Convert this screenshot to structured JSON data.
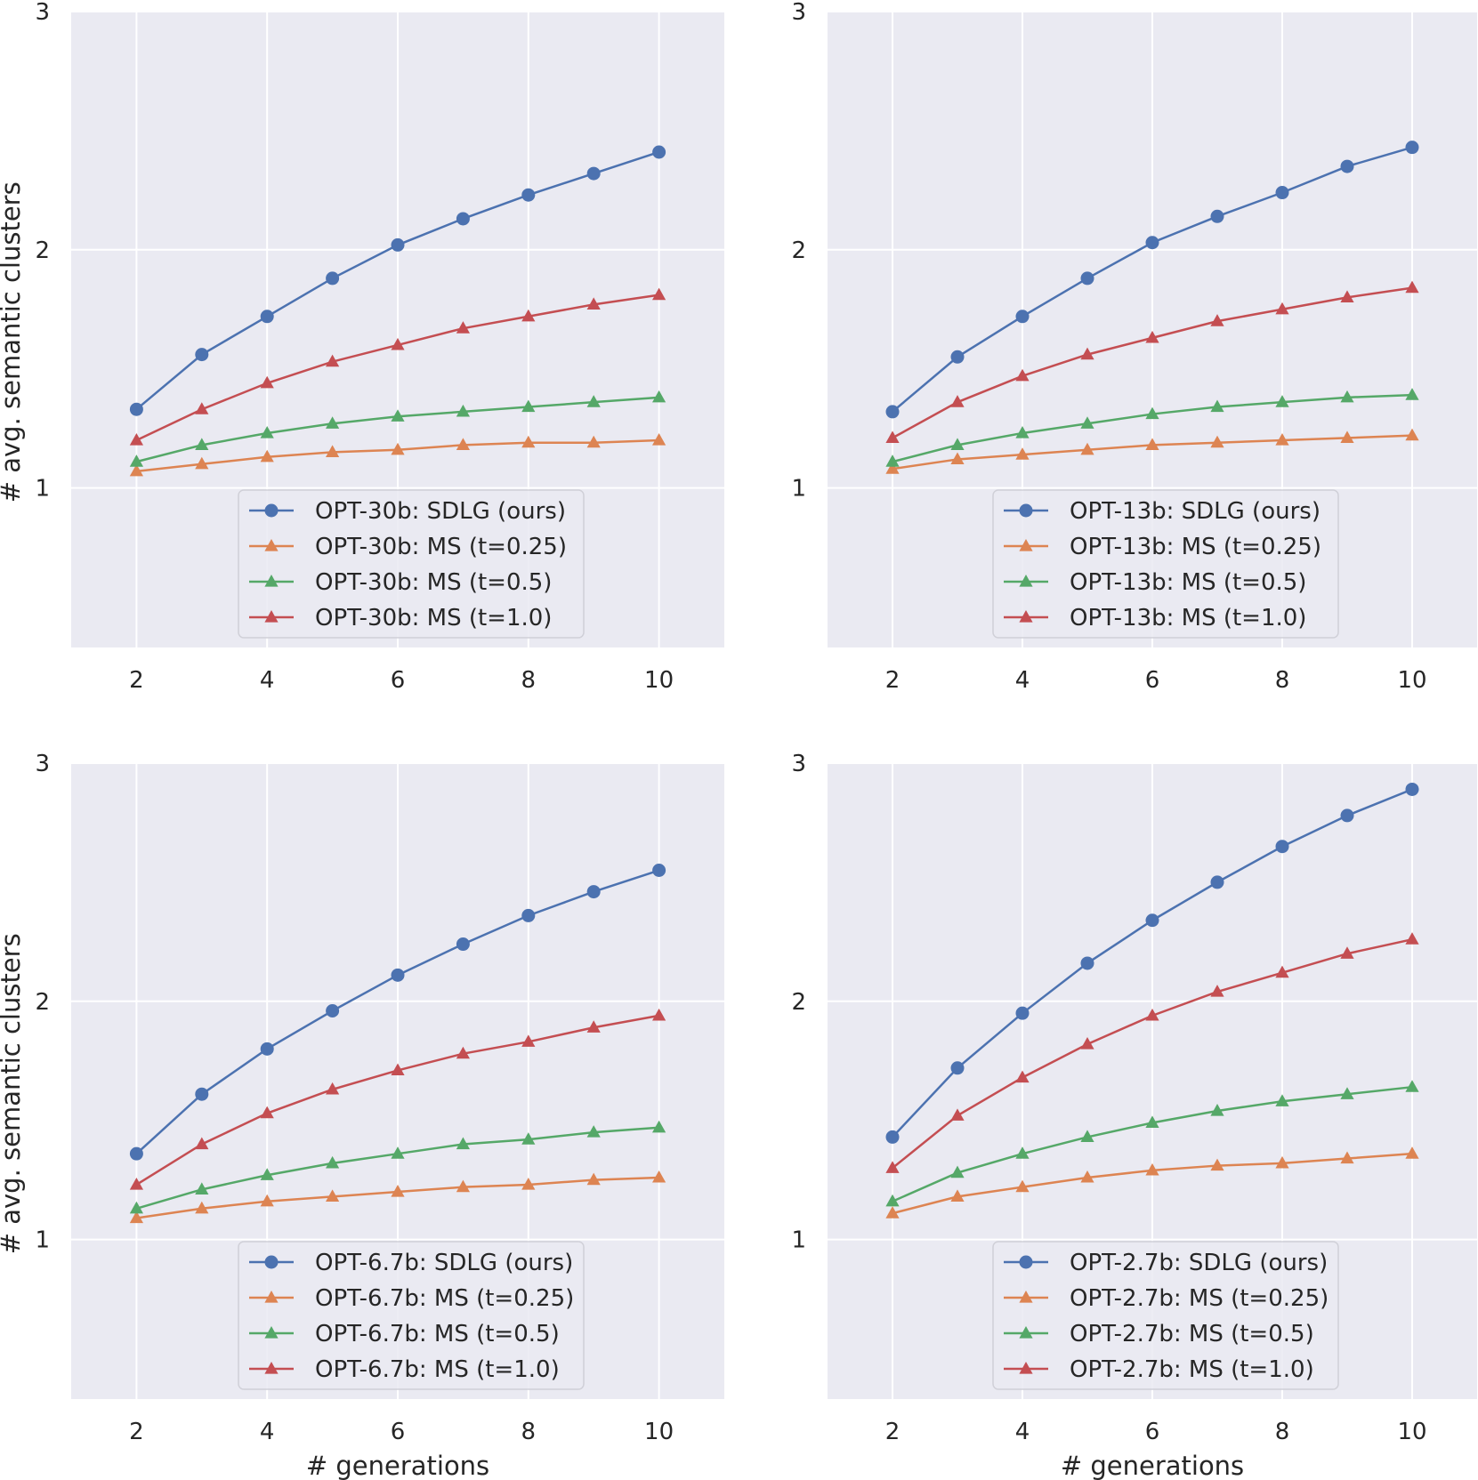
{
  "chart_data": [
    {
      "type": "line",
      "xlabel": "",
      "ylabel": "# avg. semantic clusters",
      "xlim": [
        1,
        11
      ],
      "ylim": [
        0.33,
        3
      ],
      "xticks": [
        "2",
        "4",
        "6",
        "8",
        "10"
      ],
      "yticks": [
        "1",
        "2",
        "3"
      ],
      "legend_position": "lower-center",
      "x": [
        2,
        3,
        4,
        5,
        6,
        7,
        8,
        9,
        10
      ],
      "series": [
        {
          "name": "OPT-30b: SDLG (ours)",
          "color": "#4c72b0",
          "marker": "circle",
          "values": [
            1.33,
            1.56,
            1.72,
            1.88,
            2.02,
            2.13,
            2.23,
            2.32,
            2.41
          ]
        },
        {
          "name": "OPT-30b: MS (t=0.25)",
          "color": "#dd8452",
          "marker": "triangle",
          "values": [
            1.07,
            1.1,
            1.13,
            1.15,
            1.16,
            1.18,
            1.19,
            1.19,
            1.2
          ]
        },
        {
          "name": "OPT-30b: MS (t=0.5)",
          "color": "#55a868",
          "marker": "triangle",
          "values": [
            1.11,
            1.18,
            1.23,
            1.27,
            1.3,
            1.32,
            1.34,
            1.36,
            1.38
          ]
        },
        {
          "name": "OPT-30b: MS (t=1.0)",
          "color": "#c44e52",
          "marker": "triangle",
          "values": [
            1.2,
            1.33,
            1.44,
            1.53,
            1.6,
            1.67,
            1.72,
            1.77,
            1.81
          ]
        }
      ]
    },
    {
      "type": "line",
      "xlabel": "",
      "ylabel": "",
      "xlim": [
        1,
        11
      ],
      "ylim": [
        0.33,
        3
      ],
      "xticks": [
        "2",
        "4",
        "6",
        "8",
        "10"
      ],
      "yticks": [
        "1",
        "2",
        "3"
      ],
      "legend_position": "lower-center",
      "x": [
        2,
        3,
        4,
        5,
        6,
        7,
        8,
        9,
        10
      ],
      "series": [
        {
          "name": "OPT-13b: SDLG (ours)",
          "color": "#4c72b0",
          "marker": "circle",
          "values": [
            1.32,
            1.55,
            1.72,
            1.88,
            2.03,
            2.14,
            2.24,
            2.35,
            2.43
          ]
        },
        {
          "name": "OPT-13b: MS (t=0.25)",
          "color": "#dd8452",
          "marker": "triangle",
          "values": [
            1.08,
            1.12,
            1.14,
            1.16,
            1.18,
            1.19,
            1.2,
            1.21,
            1.22
          ]
        },
        {
          "name": "OPT-13b: MS (t=0.5)",
          "color": "#55a868",
          "marker": "triangle",
          "values": [
            1.11,
            1.18,
            1.23,
            1.27,
            1.31,
            1.34,
            1.36,
            1.38,
            1.39
          ]
        },
        {
          "name": "OPT-13b: MS (t=1.0)",
          "color": "#c44e52",
          "marker": "triangle",
          "values": [
            1.21,
            1.36,
            1.47,
            1.56,
            1.63,
            1.7,
            1.75,
            1.8,
            1.84
          ]
        }
      ]
    },
    {
      "type": "line",
      "xlabel": "# generations",
      "ylabel": "# avg. semantic clusters",
      "xlim": [
        1,
        11
      ],
      "ylim": [
        0.33,
        3
      ],
      "xticks": [
        "2",
        "4",
        "6",
        "8",
        "10"
      ],
      "yticks": [
        "1",
        "2",
        "3"
      ],
      "legend_position": "lower-center",
      "x": [
        2,
        3,
        4,
        5,
        6,
        7,
        8,
        9,
        10
      ],
      "series": [
        {
          "name": "OPT-6.7b: SDLG (ours)",
          "color": "#4c72b0",
          "marker": "circle",
          "values": [
            1.36,
            1.61,
            1.8,
            1.96,
            2.11,
            2.24,
            2.36,
            2.46,
            2.55
          ]
        },
        {
          "name": "OPT-6.7b: MS (t=0.25)",
          "color": "#dd8452",
          "marker": "triangle",
          "values": [
            1.09,
            1.13,
            1.16,
            1.18,
            1.2,
            1.22,
            1.23,
            1.25,
            1.26
          ]
        },
        {
          "name": "OPT-6.7b: MS (t=0.5)",
          "color": "#55a868",
          "marker": "triangle",
          "values": [
            1.13,
            1.21,
            1.27,
            1.32,
            1.36,
            1.4,
            1.42,
            1.45,
            1.47
          ]
        },
        {
          "name": "OPT-6.7b: MS (t=1.0)",
          "color": "#c44e52",
          "marker": "triangle",
          "values": [
            1.23,
            1.4,
            1.53,
            1.63,
            1.71,
            1.78,
            1.83,
            1.89,
            1.94
          ]
        }
      ]
    },
    {
      "type": "line",
      "xlabel": "# generations",
      "ylabel": "",
      "xlim": [
        1,
        11
      ],
      "ylim": [
        0.33,
        3
      ],
      "xticks": [
        "2",
        "4",
        "6",
        "8",
        "10"
      ],
      "yticks": [
        "1",
        "2",
        "3"
      ],
      "legend_position": "lower-center",
      "x": [
        2,
        3,
        4,
        5,
        6,
        7,
        8,
        9,
        10
      ],
      "series": [
        {
          "name": "OPT-2.7b: SDLG (ours)",
          "color": "#4c72b0",
          "marker": "circle",
          "values": [
            1.43,
            1.72,
            1.95,
            2.16,
            2.34,
            2.5,
            2.65,
            2.78,
            2.89
          ]
        },
        {
          "name": "OPT-2.7b: MS (t=0.25)",
          "color": "#dd8452",
          "marker": "triangle",
          "values": [
            1.11,
            1.18,
            1.22,
            1.26,
            1.29,
            1.31,
            1.32,
            1.34,
            1.36
          ]
        },
        {
          "name": "OPT-2.7b: MS (t=0.5)",
          "color": "#55a868",
          "marker": "triangle",
          "values": [
            1.16,
            1.28,
            1.36,
            1.43,
            1.49,
            1.54,
            1.58,
            1.61,
            1.64
          ]
        },
        {
          "name": "OPT-2.7b: MS (t=1.0)",
          "color": "#c44e52",
          "marker": "triangle",
          "values": [
            1.3,
            1.52,
            1.68,
            1.82,
            1.94,
            2.04,
            2.12,
            2.2,
            2.26
          ]
        }
      ]
    }
  ]
}
